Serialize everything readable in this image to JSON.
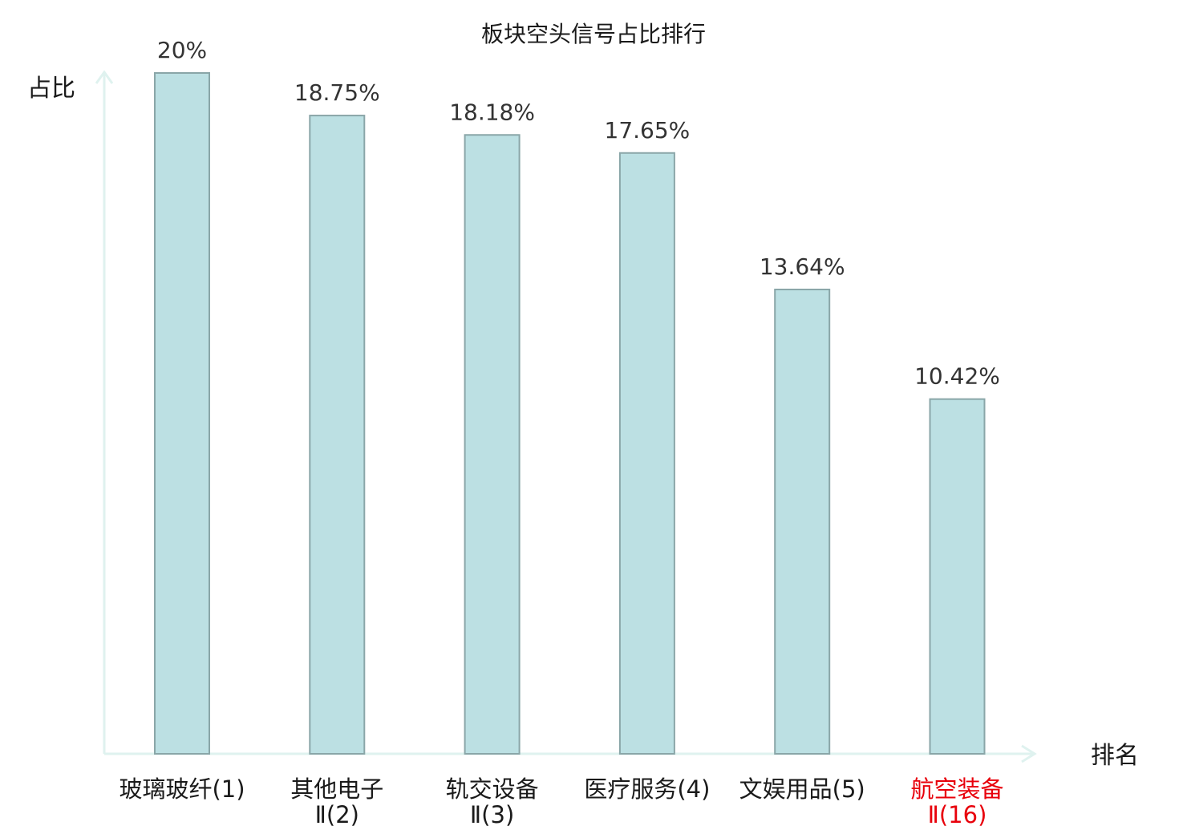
{
  "chart_data": {
    "type": "bar",
    "title": "板块空头信号占比排行",
    "ylabel": "占比",
    "xlabel": "排名",
    "categories": [
      [
        "玻璃玻纤(1)"
      ],
      [
        "其他电子",
        "Ⅱ(2)"
      ],
      [
        "轨交设备",
        "Ⅱ(3)"
      ],
      [
        "医疗服务(4)"
      ],
      [
        "文娱用品(5)"
      ],
      [
        "航空装备",
        "Ⅱ(16)"
      ]
    ],
    "values": [
      20,
      18.75,
      18.18,
      17.65,
      13.64,
      10.42
    ],
    "value_labels": [
      "20%",
      "18.75%",
      "18.18%",
      "17.65%",
      "13.64%",
      "10.42%"
    ],
    "highlight_index": 5,
    "ylim": [
      0,
      20
    ],
    "grid": false,
    "colors": {
      "bar_fill": "#bce0e3",
      "bar_stroke": "#8aa6a8",
      "axis": "#dff2ef",
      "highlight": "#e8000b"
    }
  }
}
